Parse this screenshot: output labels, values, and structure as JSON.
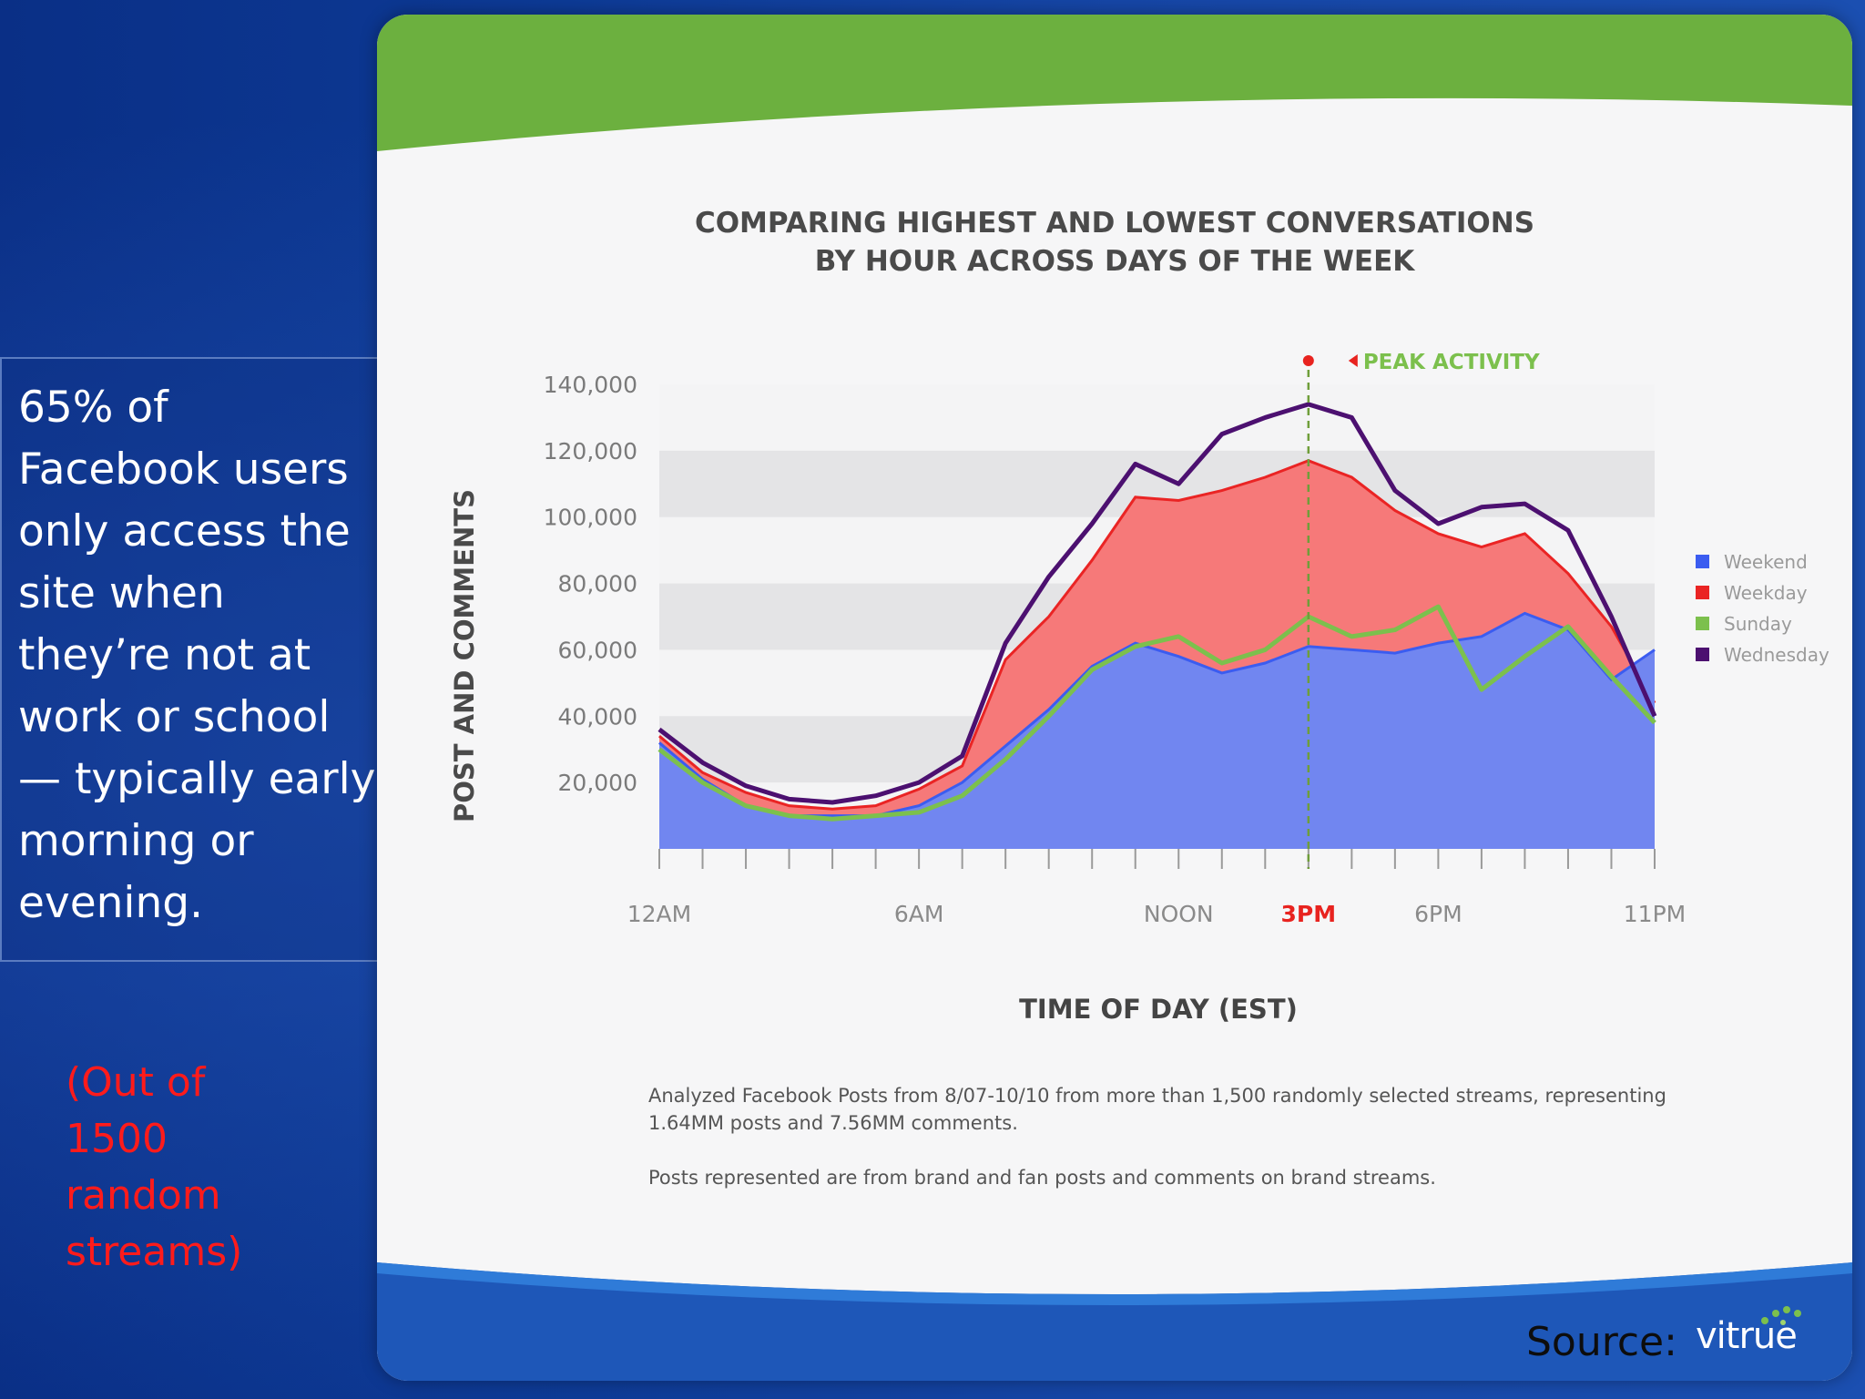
{
  "slide": {
    "left_text": "65% of Facebook users only access the site when they’re not at work or school — typically early morning or evening.",
    "note_text": "(Out of 1500 random streams)",
    "source_label": "Source:",
    "logo_text": "vitrue"
  },
  "chart_data": {
    "type": "area",
    "title_line1": "COMPARING HIGHEST AND LOWEST CONVERSATIONS",
    "title_line2": "BY HOUR ACROSS DAYS OF THE WEEK",
    "xlabel": "TIME OF DAY (EST)",
    "ylabel": "POST AND COMMENTS",
    "ylim": [
      0,
      140000
    ],
    "yticks": [
      20000,
      40000,
      60000,
      80000,
      100000,
      120000,
      140000
    ],
    "ytick_labels": [
      "20,000",
      "40,000",
      "60,000",
      "80,000",
      "100,000",
      "120,000",
      "140,000"
    ],
    "x": [
      0,
      1,
      2,
      3,
      4,
      5,
      6,
      7,
      8,
      9,
      10,
      11,
      12,
      13,
      14,
      15,
      16,
      17,
      18,
      19,
      20,
      21,
      22,
      23
    ],
    "xtick_positions": [
      0,
      6,
      12,
      15,
      18,
      23
    ],
    "xtick_labels": [
      "12AM",
      "6AM",
      "NOON",
      "3PM",
      "6PM",
      "11PM"
    ],
    "highlight_x": 15,
    "highlight_label": "3PM",
    "peak_label": "PEAK ACTIVITY",
    "legend_position": "right",
    "series": [
      {
        "name": "Weekend",
        "color": "#3b5cf0",
        "fill": "#7186f0",
        "style": "area",
        "values": [
          32000,
          21000,
          13000,
          10000,
          10000,
          10000,
          13000,
          20000,
          31000,
          42000,
          55000,
          62000,
          58000,
          53000,
          56000,
          61000,
          60000,
          59000,
          62000,
          64000,
          71000,
          66000,
          51000,
          60000
        ]
      },
      {
        "name": "Weekday",
        "color": "#ea2424",
        "fill": "#f67979",
        "style": "area",
        "values": [
          34000,
          23000,
          17000,
          13000,
          12000,
          13000,
          18000,
          25000,
          57000,
          70000,
          87000,
          106000,
          105000,
          108000,
          112000,
          117000,
          112000,
          102000,
          95000,
          91000,
          95000,
          83000,
          67000,
          44000
        ]
      },
      {
        "name": "Sunday",
        "color": "#7cc04d",
        "style": "line",
        "values": [
          30000,
          20000,
          13000,
          10000,
          9000,
          10000,
          11000,
          16000,
          27000,
          40000,
          54000,
          61000,
          64000,
          56000,
          60000,
          70000,
          64000,
          66000,
          73000,
          48000,
          58000,
          67000,
          52000,
          38000
        ]
      },
      {
        "name": "Wednesday",
        "color": "#4c1070",
        "style": "line",
        "values": [
          36000,
          26000,
          19000,
          15000,
          14000,
          16000,
          20000,
          28000,
          62000,
          82000,
          98000,
          116000,
          110000,
          125000,
          130000,
          134000,
          130000,
          108000,
          98000,
          103000,
          104000,
          96000,
          70000,
          40000
        ]
      }
    ],
    "footnote1": "Analyzed Facebook Posts from 8/07-10/10 from more than 1,500 randomly selected streams, representing 1.64MM posts and 7.56MM comments.",
    "footnote2": "Posts represented are from brand and fan posts and comments on brand streams."
  }
}
